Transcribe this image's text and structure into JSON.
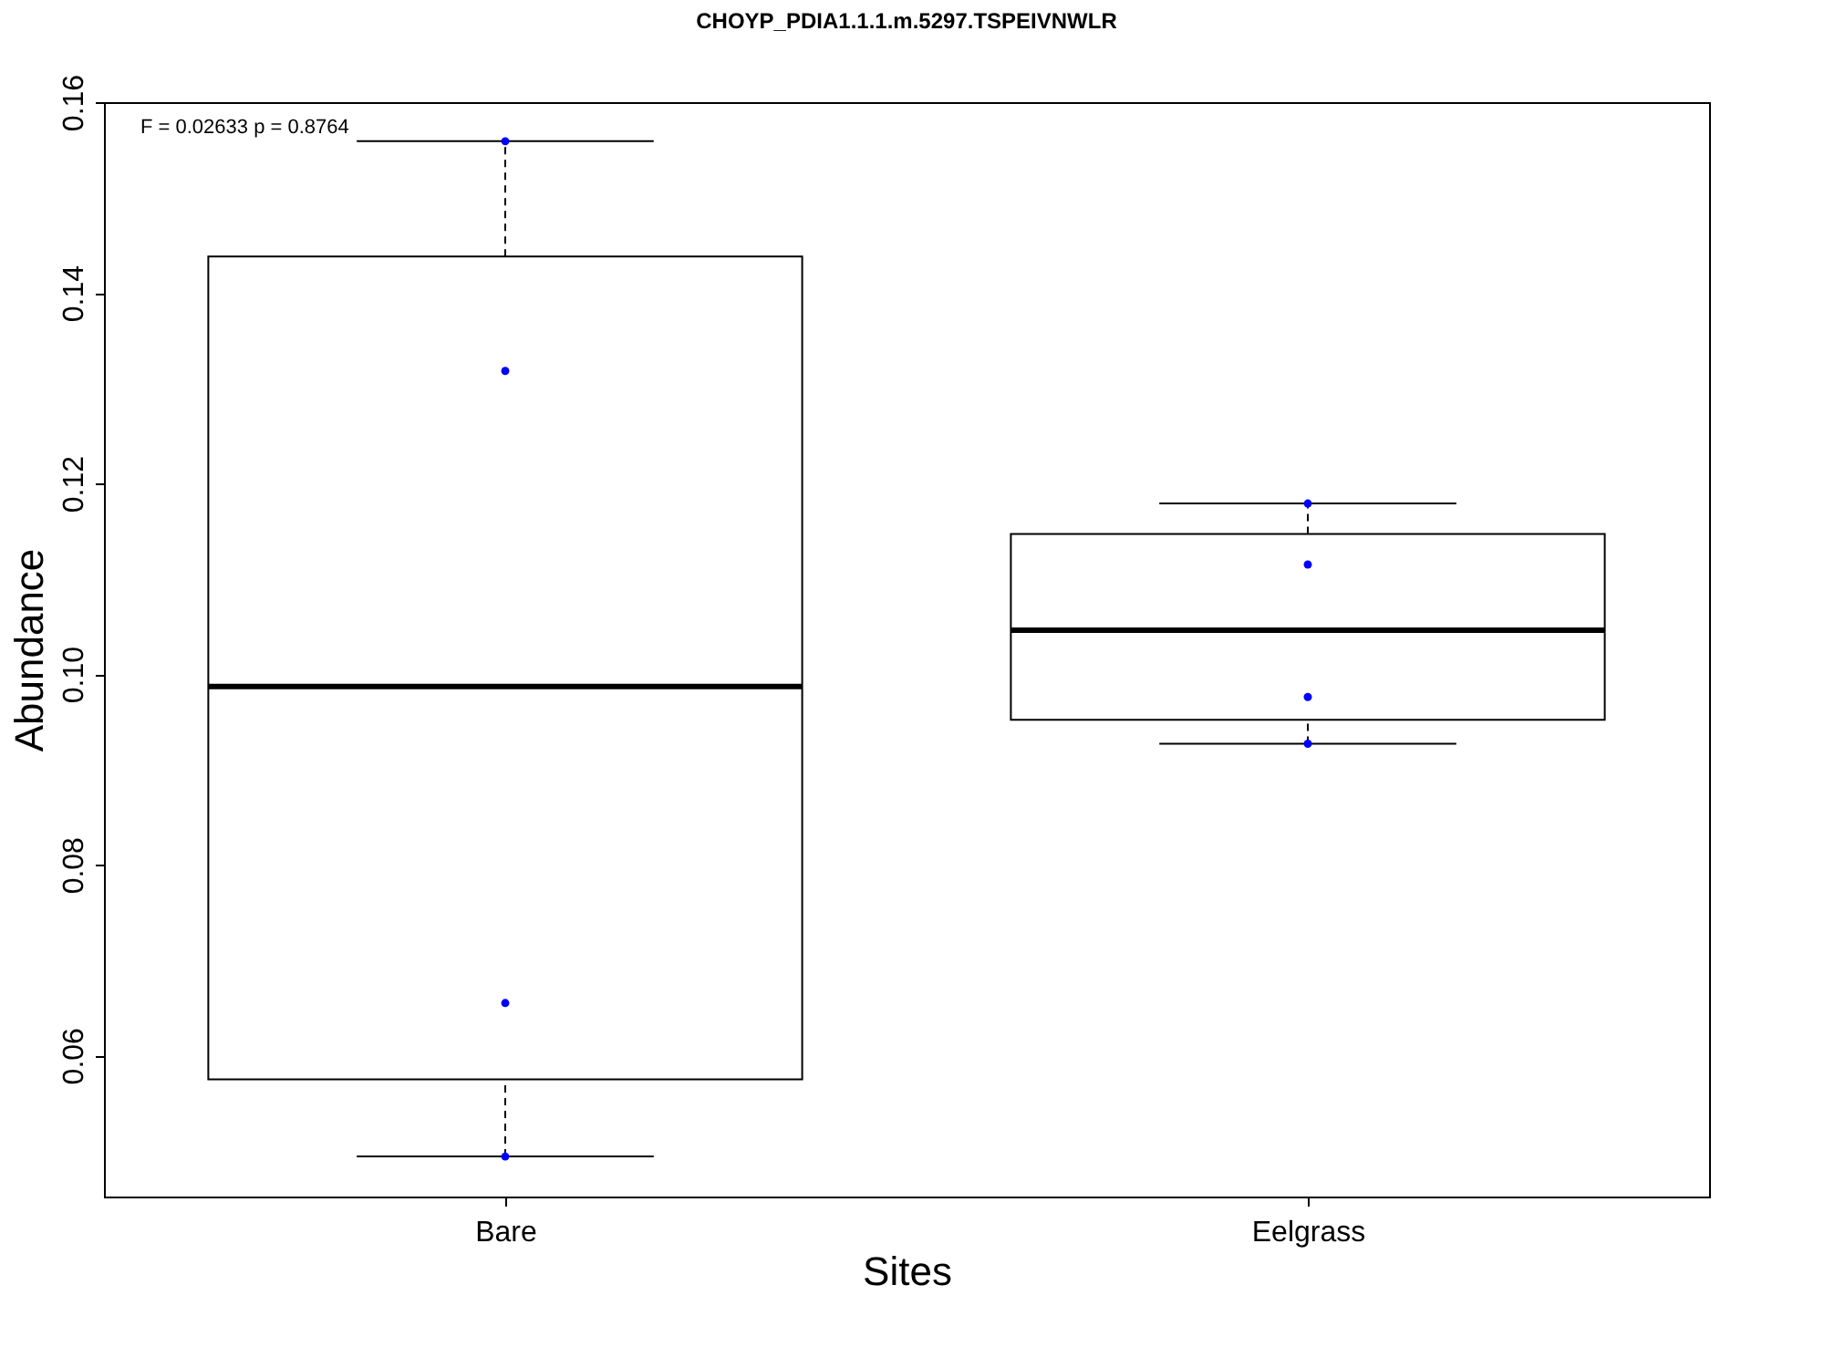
{
  "chart_data": {
    "type": "box",
    "title": "CHOYP_PDIA1.1.1.m.5297.TSPEIVNWLR",
    "xlabel": "Sites",
    "ylabel": "Abundance",
    "categories": [
      "Bare",
      "Eelgrass"
    ],
    "boxes": [
      {
        "low": 0.0494,
        "q1": 0.0575,
        "median": 0.0987,
        "q3": 0.1438,
        "high": 0.1559
      },
      {
        "low": 0.0927,
        "q1": 0.0952,
        "median": 0.1046,
        "q3": 0.1147,
        "high": 0.1179
      }
    ],
    "series": [
      {
        "type": "scatter",
        "color": "#0000ff",
        "x": [
          "Bare",
          "Bare",
          "Bare",
          "Bare",
          "Eelgrass",
          "Eelgrass",
          "Eelgrass",
          "Eelgrass"
        ],
        "values": [
          0.1559,
          0.1318,
          0.0655,
          0.0494,
          0.1179,
          0.1115,
          0.0976,
          0.0927
        ]
      }
    ],
    "ylim": [
      0.0452,
      0.16
    ],
    "yticks": [
      0.06,
      0.08,
      {
        "value": 0.1,
        "label": "0.10"
      },
      0.12,
      0.14,
      0.16
    ],
    "grid": false,
    "annotations": [
      "F = 0.02633 p = 0.8764"
    ]
  }
}
